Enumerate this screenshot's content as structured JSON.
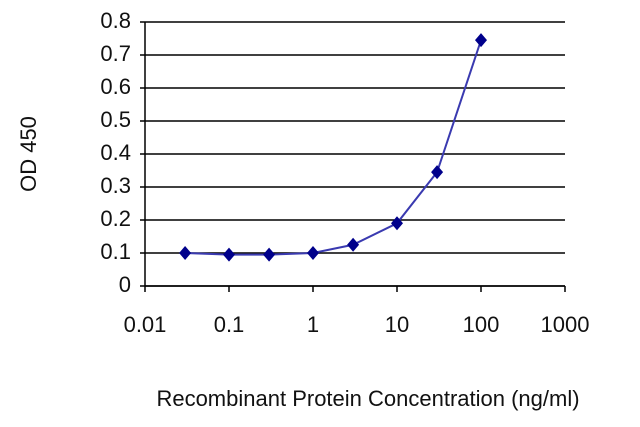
{
  "chart_data": {
    "type": "line",
    "xlabel": "Recombinant Protein Concentration (ng/ml)",
    "ylabel": "OD 450",
    "x": [
      0.03,
      0.1,
      0.3,
      1,
      3,
      10,
      30,
      100
    ],
    "series": [
      {
        "color": "#00008b",
        "line_color": "#3a3ab0",
        "values": [
          0.1,
          0.095,
          0.095,
          0.1,
          0.125,
          0.19,
          0.345,
          0.745
        ]
      }
    ],
    "xscale": "log",
    "xlim": [
      0.01,
      1000
    ],
    "xticks": [
      0.01,
      0.1,
      1,
      10,
      100,
      1000
    ],
    "ylim": [
      0,
      0.8
    ],
    "yticks": [
      0,
      0.1,
      0.2,
      0.3,
      0.4,
      0.5,
      0.6,
      0.7,
      0.8
    ],
    "grid": true
  }
}
